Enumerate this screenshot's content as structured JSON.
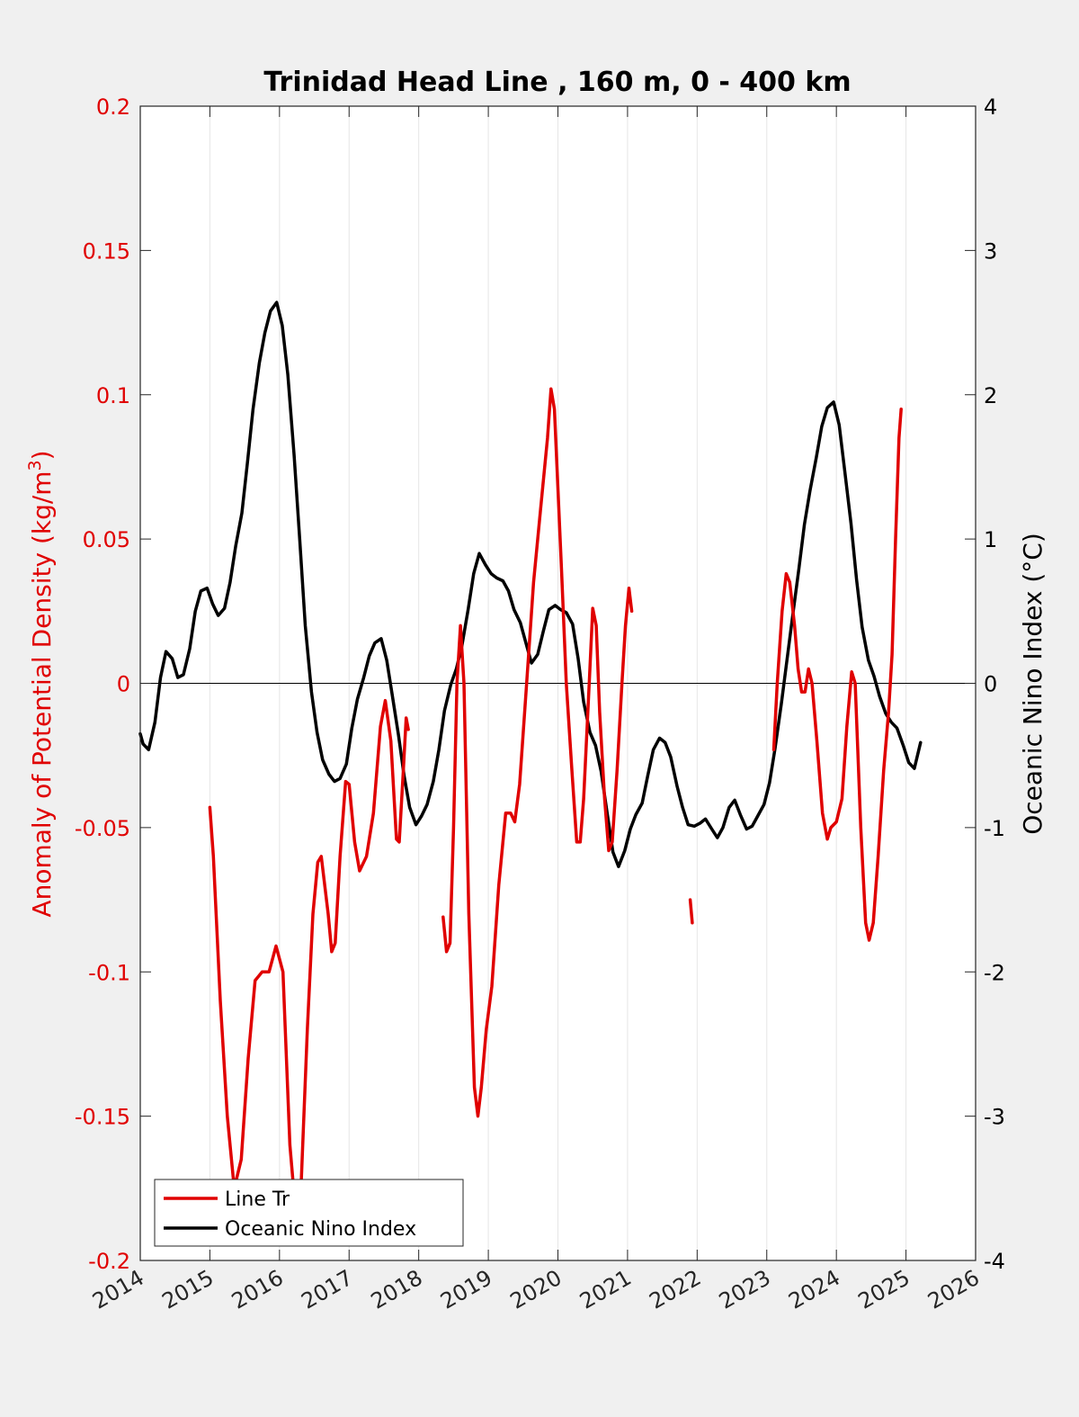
{
  "chart_data": {
    "type": "line",
    "title": "Trinidad Head Line , 160 m, 0 - 400 km",
    "xlim": [
      2014,
      2026
    ],
    "x_ticks": [
      "2014",
      "2015",
      "2016",
      "2017",
      "2018",
      "2019",
      "2020",
      "2021",
      "2022",
      "2023",
      "2024",
      "2025",
      "2026"
    ],
    "left_axis": {
      "label": "Anomaly of Potential Density (kg/m³)",
      "label_main": "Anomaly of Potential Density (kg/m",
      "label_sup": "3",
      "label_end": ")",
      "ylim": [
        -0.2,
        0.2
      ],
      "ticks": [
        "-0.2",
        "-0.15",
        "-0.1",
        "-0.05",
        "0",
        "0.05",
        "0.1",
        "0.15",
        "0.2"
      ],
      "color": "#e00000"
    },
    "right_axis": {
      "label": "Oceanic Nino Index (°C)",
      "ylim": [
        -4,
        4
      ],
      "ticks": [
        "-4",
        "-3",
        "-2",
        "-1",
        "0",
        "1",
        "2",
        "3",
        "4"
      ],
      "color": "#000000"
    },
    "grid": "vertical",
    "zero_line": true,
    "legend_position": "bottom-left",
    "series": [
      {
        "name": "Line Tr",
        "axis": "left",
        "color": "#e00000",
        "segments": [
          [
            [
              2015.0,
              -0.043
            ],
            [
              2015.05,
              -0.06
            ],
            [
              2015.15,
              -0.11
            ],
            [
              2015.25,
              -0.15
            ],
            [
              2015.35,
              -0.175
            ],
            [
              2015.45,
              -0.165
            ],
            [
              2015.55,
              -0.13
            ],
            [
              2015.65,
              -0.103
            ],
            [
              2015.75,
              -0.1
            ],
            [
              2015.85,
              -0.1
            ],
            [
              2015.95,
              -0.091
            ],
            [
              2016.05,
              -0.1
            ],
            [
              2016.15,
              -0.16
            ],
            [
              2016.22,
              -0.18
            ],
            [
              2016.3,
              -0.18
            ],
            [
              2016.4,
              -0.12
            ],
            [
              2016.48,
              -0.08
            ],
            [
              2016.55,
              -0.062
            ],
            [
              2016.6,
              -0.06
            ],
            [
              2016.7,
              -0.08
            ],
            [
              2016.75,
              -0.093
            ],
            [
              2016.8,
              -0.09
            ],
            [
              2016.87,
              -0.06
            ],
            [
              2016.95,
              -0.034
            ],
            [
              2017.0,
              -0.035
            ],
            [
              2017.08,
              -0.055
            ],
            [
              2017.15,
              -0.065
            ],
            [
              2017.25,
              -0.06
            ],
            [
              2017.35,
              -0.045
            ],
            [
              2017.45,
              -0.015
            ],
            [
              2017.52,
              -0.006
            ],
            [
              2017.6,
              -0.02
            ],
            [
              2017.68,
              -0.054
            ],
            [
              2017.72,
              -0.055
            ],
            [
              2017.78,
              -0.03
            ],
            [
              2017.82,
              -0.012
            ],
            [
              2017.85,
              -0.016
            ]
          ],
          [
            [
              2018.35,
              -0.081
            ],
            [
              2018.4,
              -0.093
            ],
            [
              2018.45,
              -0.09
            ],
            [
              2018.5,
              -0.05
            ],
            [
              2018.55,
              0.0
            ],
            [
              2018.6,
              0.02
            ],
            [
              2018.65,
              0.0
            ],
            [
              2018.72,
              -0.08
            ],
            [
              2018.8,
              -0.14
            ],
            [
              2018.85,
              -0.15
            ],
            [
              2018.9,
              -0.14
            ],
            [
              2018.97,
              -0.12
            ],
            [
              2019.05,
              -0.105
            ],
            [
              2019.15,
              -0.07
            ],
            [
              2019.25,
              -0.045
            ],
            [
              2019.32,
              -0.045
            ],
            [
              2019.38,
              -0.048
            ],
            [
              2019.45,
              -0.035
            ],
            [
              2019.55,
              0.0
            ],
            [
              2019.65,
              0.035
            ],
            [
              2019.75,
              0.06
            ],
            [
              2019.85,
              0.085
            ],
            [
              2019.9,
              0.102
            ],
            [
              2019.95,
              0.095
            ],
            [
              2020.05,
              0.04
            ],
            [
              2020.12,
              0.0
            ],
            [
              2020.2,
              -0.03
            ],
            [
              2020.27,
              -0.055
            ],
            [
              2020.32,
              -0.055
            ],
            [
              2020.37,
              -0.04
            ],
            [
              2020.45,
              0.0
            ],
            [
              2020.5,
              0.026
            ],
            [
              2020.55,
              0.02
            ],
            [
              2020.6,
              -0.01
            ],
            [
              2020.67,
              -0.04
            ],
            [
              2020.73,
              -0.058
            ],
            [
              2020.78,
              -0.055
            ],
            [
              2020.85,
              -0.03
            ],
            [
              2020.92,
              0.0
            ],
            [
              2020.97,
              0.02
            ],
            [
              2021.02,
              0.033
            ],
            [
              2021.06,
              0.025
            ]
          ],
          [
            [
              2021.9,
              -0.075
            ],
            [
              2021.93,
              -0.083
            ]
          ],
          [
            [
              2023.1,
              -0.023
            ],
            [
              2023.15,
              0.0
            ],
            [
              2023.22,
              0.025
            ],
            [
              2023.28,
              0.038
            ],
            [
              2023.33,
              0.035
            ],
            [
              2023.4,
              0.02
            ],
            [
              2023.45,
              0.005
            ],
            [
              2023.5,
              -0.003
            ],
            [
              2023.55,
              -0.003
            ],
            [
              2023.6,
              0.005
            ],
            [
              2023.65,
              0.0
            ],
            [
              2023.72,
              -0.02
            ],
            [
              2023.8,
              -0.045
            ],
            [
              2023.87,
              -0.054
            ],
            [
              2023.92,
              -0.05
            ],
            [
              2024.0,
              -0.048
            ],
            [
              2024.08,
              -0.04
            ],
            [
              2024.15,
              -0.015
            ],
            [
              2024.22,
              0.004
            ],
            [
              2024.27,
              0.0
            ],
            [
              2024.35,
              -0.05
            ],
            [
              2024.42,
              -0.083
            ],
            [
              2024.47,
              -0.089
            ],
            [
              2024.53,
              -0.083
            ],
            [
              2024.6,
              -0.06
            ],
            [
              2024.68,
              -0.03
            ],
            [
              2024.75,
              -0.01
            ],
            [
              2024.8,
              0.01
            ],
            [
              2024.85,
              0.05
            ],
            [
              2024.9,
              0.085
            ],
            [
              2024.93,
              0.095
            ]
          ]
        ]
      },
      {
        "name": "Oceanic Nino Index",
        "axis": "right",
        "color": "#000000",
        "segments": [
          [
            [
              2014.0,
              -0.35
            ],
            [
              2014.04,
              -0.42
            ],
            [
              2014.12,
              -0.46
            ],
            [
              2014.21,
              -0.27
            ],
            [
              2014.29,
              0.04
            ],
            [
              2014.37,
              0.22
            ],
            [
              2014.46,
              0.17
            ],
            [
              2014.54,
              0.04
            ],
            [
              2014.62,
              0.06
            ],
            [
              2014.71,
              0.24
            ],
            [
              2014.79,
              0.5
            ],
            [
              2014.87,
              0.64
            ],
            [
              2014.96,
              0.66
            ],
            [
              2015.04,
              0.55
            ],
            [
              2015.12,
              0.47
            ],
            [
              2015.21,
              0.52
            ],
            [
              2015.29,
              0.7
            ],
            [
              2015.37,
              0.95
            ],
            [
              2015.46,
              1.18
            ],
            [
              2015.54,
              1.53
            ],
            [
              2015.62,
              1.9
            ],
            [
              2015.71,
              2.22
            ],
            [
              2015.79,
              2.43
            ],
            [
              2015.87,
              2.58
            ],
            [
              2015.96,
              2.64
            ],
            [
              2016.04,
              2.48
            ],
            [
              2016.12,
              2.14
            ],
            [
              2016.21,
              1.58
            ],
            [
              2016.29,
              1.0
            ],
            [
              2016.37,
              0.4
            ],
            [
              2016.46,
              -0.06
            ],
            [
              2016.54,
              -0.34
            ],
            [
              2016.62,
              -0.53
            ],
            [
              2016.71,
              -0.63
            ],
            [
              2016.79,
              -0.68
            ],
            [
              2016.87,
              -0.66
            ],
            [
              2016.96,
              -0.56
            ],
            [
              2017.04,
              -0.31
            ],
            [
              2017.12,
              -0.11
            ],
            [
              2017.21,
              0.04
            ],
            [
              2017.29,
              0.19
            ],
            [
              2017.37,
              0.28
            ],
            [
              2017.46,
              0.31
            ],
            [
              2017.54,
              0.16
            ],
            [
              2017.62,
              -0.08
            ],
            [
              2017.71,
              -0.36
            ],
            [
              2017.79,
              -0.64
            ],
            [
              2017.87,
              -0.86
            ],
            [
              2017.96,
              -0.98
            ],
            [
              2018.04,
              -0.92
            ],
            [
              2018.12,
              -0.84
            ],
            [
              2018.21,
              -0.68
            ],
            [
              2018.29,
              -0.46
            ],
            [
              2018.37,
              -0.19
            ],
            [
              2018.46,
              -0.01
            ],
            [
              2018.54,
              0.1
            ],
            [
              2018.62,
              0.26
            ],
            [
              2018.71,
              0.51
            ],
            [
              2018.79,
              0.76
            ],
            [
              2018.87,
              0.9
            ],
            [
              2018.96,
              0.82
            ],
            [
              2019.04,
              0.76
            ],
            [
              2019.12,
              0.73
            ],
            [
              2019.21,
              0.71
            ],
            [
              2019.29,
              0.64
            ],
            [
              2019.37,
              0.51
            ],
            [
              2019.46,
              0.42
            ],
            [
              2019.54,
              0.28
            ],
            [
              2019.62,
              0.14
            ],
            [
              2019.71,
              0.2
            ],
            [
              2019.79,
              0.36
            ],
            [
              2019.87,
              0.51
            ],
            [
              2019.96,
              0.54
            ],
            [
              2020.04,
              0.51
            ],
            [
              2020.12,
              0.49
            ],
            [
              2020.21,
              0.41
            ],
            [
              2020.29,
              0.17
            ],
            [
              2020.37,
              -0.13
            ],
            [
              2020.46,
              -0.34
            ],
            [
              2020.54,
              -0.43
            ],
            [
              2020.62,
              -0.61
            ],
            [
              2020.71,
              -0.91
            ],
            [
              2020.79,
              -1.17
            ],
            [
              2020.87,
              -1.27
            ],
            [
              2020.96,
              -1.16
            ],
            [
              2021.04,
              -1.01
            ],
            [
              2021.12,
              -0.91
            ],
            [
              2021.21,
              -0.83
            ],
            [
              2021.29,
              -0.64
            ],
            [
              2021.37,
              -0.46
            ],
            [
              2021.46,
              -0.38
            ],
            [
              2021.54,
              -0.41
            ],
            [
              2021.62,
              -0.51
            ],
            [
              2021.71,
              -0.71
            ],
            [
              2021.79,
              -0.86
            ],
            [
              2021.87,
              -0.98
            ],
            [
              2021.96,
              -0.99
            ],
            [
              2022.04,
              -0.97
            ],
            [
              2022.12,
              -0.94
            ],
            [
              2022.21,
              -1.01
            ],
            [
              2022.29,
              -1.07
            ],
            [
              2022.37,
              -1.0
            ],
            [
              2022.46,
              -0.86
            ],
            [
              2022.54,
              -0.81
            ],
            [
              2022.62,
              -0.91
            ],
            [
              2022.71,
              -1.01
            ],
            [
              2022.79,
              -0.99
            ],
            [
              2022.87,
              -0.92
            ],
            [
              2022.96,
              -0.84
            ],
            [
              2023.04,
              -0.69
            ],
            [
              2023.12,
              -0.45
            ],
            [
              2023.21,
              -0.14
            ],
            [
              2023.29,
              0.16
            ],
            [
              2023.37,
              0.46
            ],
            [
              2023.46,
              0.79
            ],
            [
              2023.54,
              1.1
            ],
            [
              2023.62,
              1.33
            ],
            [
              2023.71,
              1.56
            ],
            [
              2023.79,
              1.78
            ],
            [
              2023.87,
              1.91
            ],
            [
              2023.96,
              1.95
            ],
            [
              2024.04,
              1.79
            ],
            [
              2024.12,
              1.47
            ],
            [
              2024.21,
              1.11
            ],
            [
              2024.29,
              0.72
            ],
            [
              2024.37,
              0.39
            ],
            [
              2024.46,
              0.16
            ],
            [
              2024.54,
              0.05
            ],
            [
              2024.62,
              -0.09
            ],
            [
              2024.71,
              -0.21
            ],
            [
              2024.79,
              -0.27
            ],
            [
              2024.87,
              -0.31
            ],
            [
              2024.96,
              -0.43
            ],
            [
              2025.04,
              -0.55
            ],
            [
              2025.12,
              -0.59
            ],
            [
              2025.21,
              -0.41
            ]
          ]
        ]
      }
    ]
  }
}
